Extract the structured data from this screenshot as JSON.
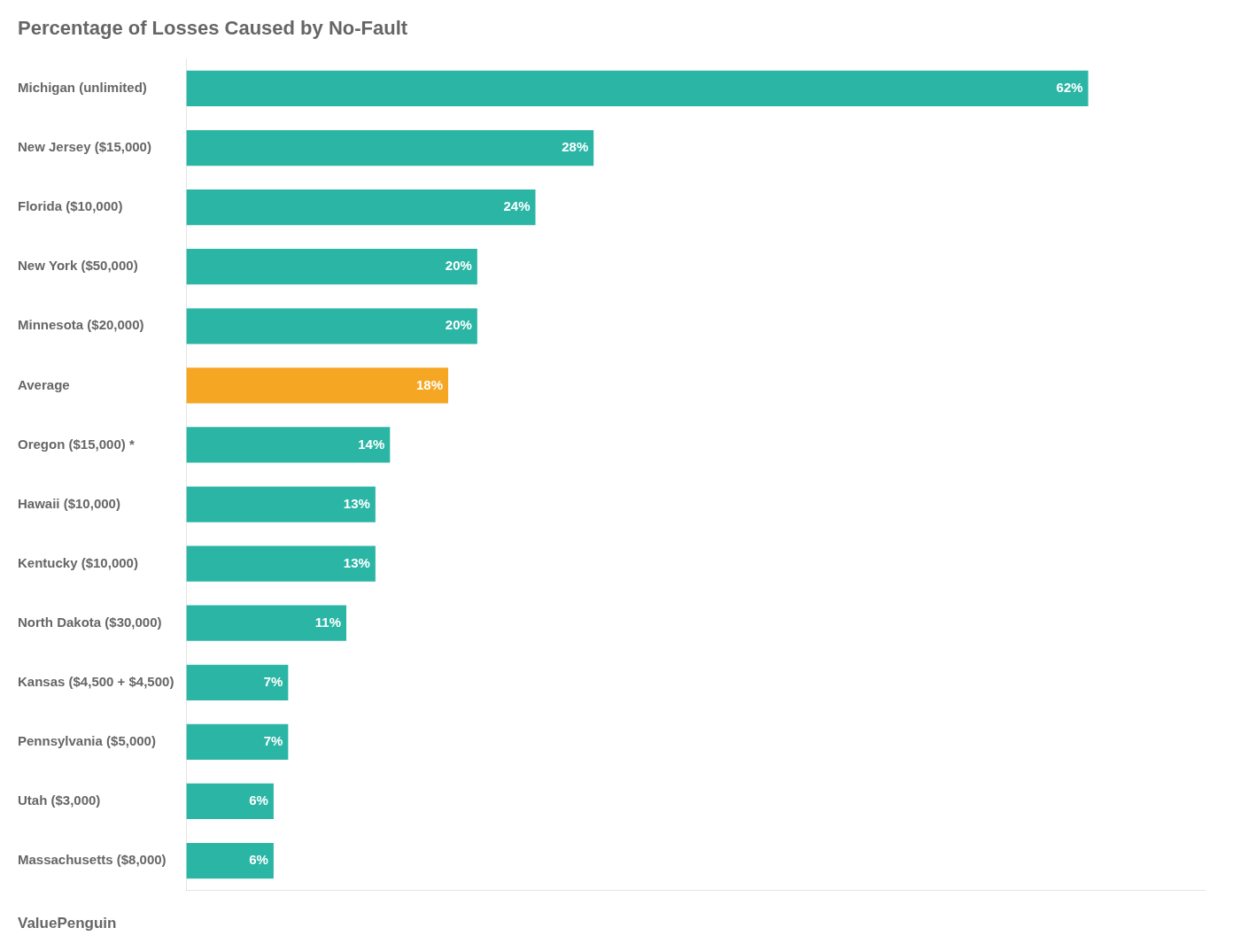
{
  "chart_data": {
    "type": "bar",
    "orientation": "horizontal",
    "title": "Percentage of Losses Caused by No-Fault",
    "categories": [
      "Massachusetts ($8,000)",
      "Utah ($3,000)",
      "Pennsylvania ($5,000)",
      "Kansas ($4,500 + $4,500)",
      "North Dakota ($30,000)",
      "Kentucky ($10,000)",
      "Hawaii ($10,000)",
      "Oregon ($15,000) *",
      "Average",
      "Minnesota ($20,000)",
      "New York ($50,000)",
      "Florida ($10,000)",
      "New Jersey ($15,000)",
      "Michigan (unlimited)"
    ],
    "values": [
      6,
      6,
      7,
      7,
      11,
      13,
      13,
      14,
      18,
      20,
      20,
      24,
      28,
      62
    ],
    "value_labels": [
      "6%",
      "6%",
      "7%",
      "7%",
      "11%",
      "13%",
      "13%",
      "14%",
      "18%",
      "20%",
      "20%",
      "24%",
      "28%",
      "62%"
    ],
    "colors": [
      "#2ab5a5",
      "#2ab5a5",
      "#2ab5a5",
      "#2ab5a5",
      "#2ab5a5",
      "#2ab5a5",
      "#2ab5a5",
      "#2ab5a5",
      "#f5a623",
      "#2ab5a5",
      "#2ab5a5",
      "#2ab5a5",
      "#2ab5a5",
      "#2ab5a5"
    ],
    "xlim": [
      0,
      70
    ],
    "data_labels": true,
    "tick_labels": "y",
    "grid": false,
    "annotations": [
      "ValuePenguin"
    ]
  }
}
